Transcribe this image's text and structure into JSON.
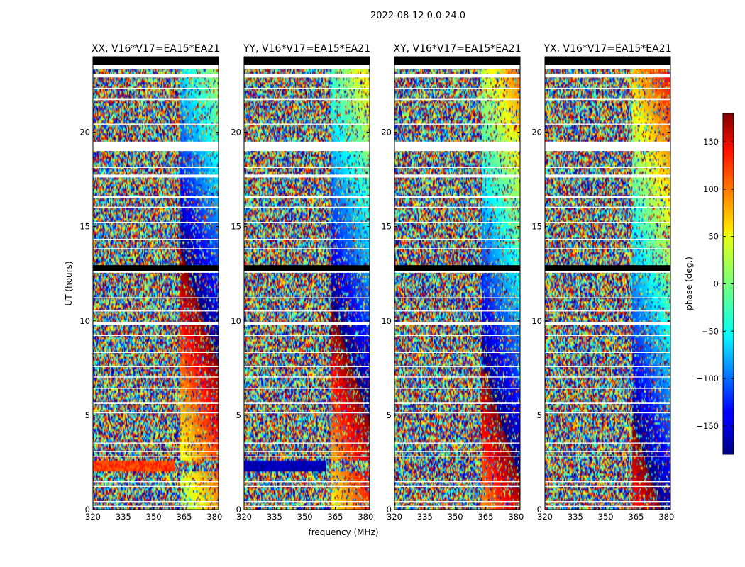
{
  "figure": {
    "suptitle": "2022-08-12 0.0-24.0",
    "ylabel": "UT (hours)",
    "xlabel": "frequency (MHz)"
  },
  "chart_data": {
    "type": "heatmap",
    "value_quantity": "phase (deg.)",
    "xlim": [
      320,
      382
    ],
    "ylim": [
      0,
      24
    ],
    "x_ticks": [
      320,
      335,
      350,
      365,
      380
    ],
    "y_ticks": [
      0,
      5,
      10,
      15,
      20
    ],
    "panels": [
      {
        "title": "XX, V16*V17=EA15*EA21",
        "coherent_band": [
          2.0,
          2.6
        ],
        "coherent_phase": 115
      },
      {
        "title": "YY, V16*V17=EA15*EA21",
        "coherent_band": [
          2.0,
          2.6
        ],
        "coherent_phase": -160
      },
      {
        "title": "XY, V16*V17=EA15*EA21",
        "coherent_band": null,
        "coherent_phase": null
      },
      {
        "title": "YX, V16*V17=EA15*EA21",
        "coherent_band": null,
        "coherent_phase": null
      }
    ],
    "colorbar": {
      "label": "phase (deg.)",
      "range": [
        -180,
        180
      ],
      "ticks": [
        150,
        100,
        50,
        0,
        -50,
        -100,
        -150
      ],
      "tick_labels": [
        "150",
        "100",
        "50",
        "0",
        "−50",
        "−100",
        "−150"
      ],
      "colormap": "jet"
    },
    "flagged_time_ranges": [
      [
        0.15,
        0.2
      ],
      [
        0.4,
        0.45
      ],
      [
        1.2,
        1.25
      ],
      [
        1.45,
        1.5
      ],
      [
        2.8,
        2.85
      ],
      [
        3.05,
        3.1
      ],
      [
        3.5,
        3.55
      ],
      [
        5.1,
        5.15
      ],
      [
        5.6,
        5.7
      ],
      [
        6.4,
        6.45
      ],
      [
        7.0,
        7.05
      ],
      [
        7.55,
        7.6
      ],
      [
        8.3,
        8.35
      ],
      [
        9.2,
        9.25
      ],
      [
        9.8,
        9.95
      ],
      [
        10.5,
        10.55
      ],
      [
        11.2,
        11.25
      ],
      [
        12.55,
        12.65
      ],
      [
        13.8,
        13.85
      ],
      [
        14.3,
        14.35
      ],
      [
        15.2,
        15.25
      ],
      [
        16.0,
        16.05
      ],
      [
        16.5,
        16.6
      ],
      [
        17.6,
        17.75
      ],
      [
        18.1,
        18.15
      ],
      [
        19.0,
        19.5
      ],
      [
        20.4,
        20.45
      ],
      [
        21.7,
        21.8
      ],
      [
        22.3,
        22.35
      ],
      [
        22.9,
        23.1
      ],
      [
        23.35,
        23.55
      ]
    ],
    "blank_time_ranges": [
      [
        12.65,
        12.95
      ],
      [
        23.55,
        24.0
      ]
    ],
    "fringe_start_mhz": 363
  }
}
